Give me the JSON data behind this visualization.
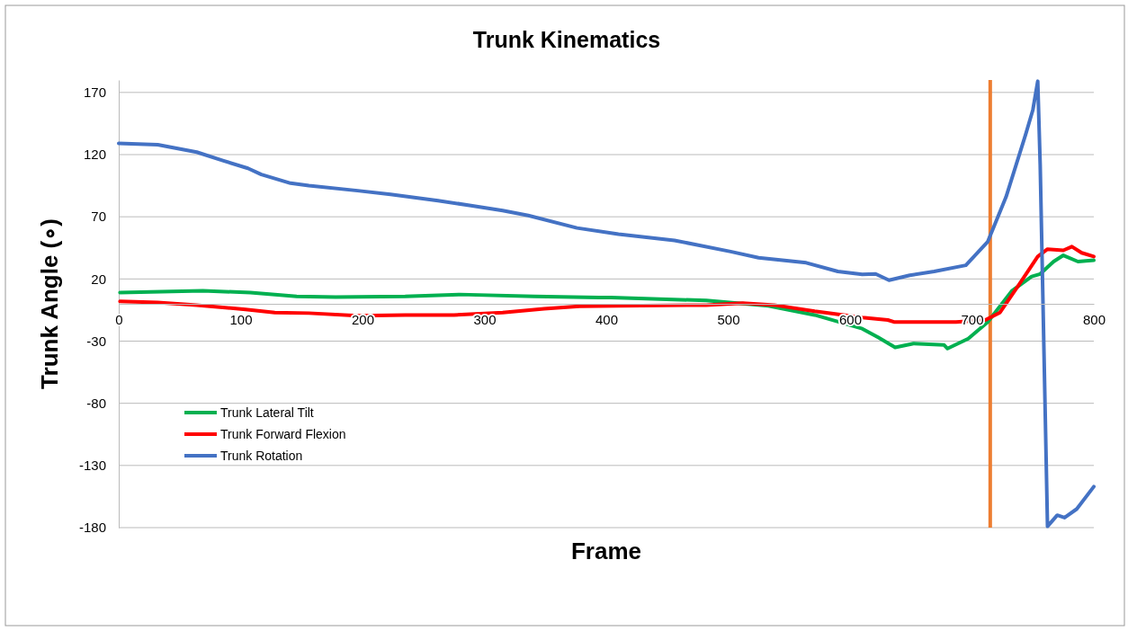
{
  "chart_data": {
    "type": "line",
    "title": "Trunk Kinematics",
    "xlabel": "Frame",
    "ylabel": "Trunk Angle (∘)",
    "xlim": [
      0,
      800
    ],
    "xticks": [
      0,
      100,
      200,
      300,
      400,
      500,
      600,
      700,
      800
    ],
    "ylim": [
      -180,
      180
    ],
    "yticks": [
      -180,
      -130,
      -80,
      -30,
      20,
      70,
      120,
      170
    ],
    "grid": "y",
    "legend": "bottom left",
    "marker": "none",
    "line_style": "solid",
    "ref_lines": [
      {
        "axis": "x",
        "value": 715,
        "color": "#ed7d31"
      }
    ],
    "series": [
      {
        "name": "Trunk Lateral Tilt",
        "color": "#00b050",
        "x": [
          1,
          69,
          108,
          146,
          178,
          235,
          280,
          341,
          394,
          404,
          482,
          533,
          571,
          610,
          623,
          637,
          652,
          677,
          680,
          697,
          713,
          733,
          749,
          756,
          767,
          775,
          787,
          800
        ],
        "values": [
          9,
          10.5,
          9,
          6,
          5.5,
          6,
          7.5,
          6,
          5,
          5,
          2.7,
          -1.6,
          -9,
          -20,
          -27,
          -35,
          -32,
          -33,
          -36,
          -28,
          -14.6,
          10.6,
          22,
          24,
          34,
          39,
          34,
          35
        ]
      },
      {
        "name": "Trunk Forward Flexion",
        "color": "#ff0000",
        "x": [
          1,
          32,
          64,
          104,
          128,
          156,
          196,
          235,
          275,
          315,
          349,
          378,
          410,
          482,
          512,
          538,
          571,
          610,
          631,
          636,
          687,
          711,
          723,
          739,
          754,
          762,
          775,
          782,
          790,
          800
        ],
        "values": [
          2,
          1,
          -1,
          -4.5,
          -7,
          -7.5,
          -9.5,
          -9,
          -9,
          -7,
          -4,
          -2,
          -1.6,
          -1,
          0.5,
          -1,
          -6,
          -11,
          -13,
          -14.6,
          -14.6,
          -13,
          -7,
          16,
          38,
          44,
          43,
          46,
          41,
          38
        ]
      },
      {
        "name": "Trunk Rotation",
        "color": "#4472c4",
        "x": [
          0,
          32,
          64,
          86,
          106,
          117,
          141,
          156,
          196,
          223,
          262,
          289,
          315,
          336,
          376,
          410,
          456,
          502,
          525,
          564,
          590,
          610,
          621,
          632,
          649,
          669,
          695,
          713,
          728,
          744,
          750,
          754,
          756,
          762,
          770,
          776,
          786,
          800
        ],
        "values": [
          129,
          128,
          122,
          115,
          109,
          104,
          97,
          95,
          91,
          88,
          83,
          79,
          75,
          71,
          61,
          56,
          51,
          42,
          37,
          33,
          26,
          23.6,
          24,
          19,
          23,
          26,
          31,
          50,
          86,
          136,
          156,
          179,
          112,
          -179,
          -170,
          -172,
          -165,
          -147
        ]
      }
    ]
  }
}
